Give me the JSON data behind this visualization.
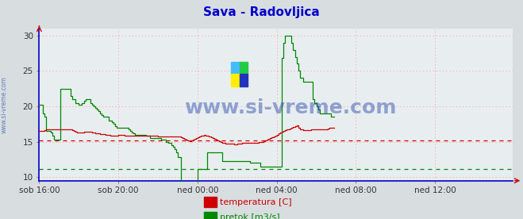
{
  "title": "Sava - Radovljica",
  "title_color": "#0000cc",
  "title_fontsize": 11,
  "bg_color": "#d8dde0",
  "plot_bg_color": "#e8eef0",
  "xlim": [
    0,
    287
  ],
  "ylim": [
    9.5,
    31
  ],
  "yticks": [
    10,
    15,
    20,
    25,
    30
  ],
  "xlabel_ticks": [
    0,
    48,
    96,
    144,
    192,
    240
  ],
  "xlabel_labels": [
    "sob 16:00",
    "sob 20:00",
    "ned 00:00",
    "ned 04:00",
    "ned 08:00",
    "ned 12:00"
  ],
  "watermark": "www.si-vreme.com",
  "watermark_color": "#2244aa",
  "watermark_fontsize": 18,
  "temp_color": "#cc0000",
  "flow_color": "#008800",
  "avg_temp_color": "#cc0000",
  "avg_flow_color": "#008800",
  "avg_temp_value": 15.2,
  "avg_flow_value": 11.2,
  "legend_labels": [
    "temperatura [C]",
    "pretok [m3/s]"
  ],
  "legend_colors": [
    "#cc0000",
    "#008800"
  ],
  "temp_data": [
    16.5,
    16.5,
    16.5,
    16.6,
    16.7,
    16.7,
    16.8,
    16.8,
    16.8,
    16.8,
    16.8,
    16.8,
    16.8,
    16.8,
    16.7,
    16.7,
    16.8,
    16.8,
    16.7,
    16.7,
    16.6,
    16.5,
    16.4,
    16.3,
    16.3,
    16.3,
    16.3,
    16.4,
    16.4,
    16.4,
    16.4,
    16.4,
    16.3,
    16.3,
    16.2,
    16.2,
    16.2,
    16.1,
    16.1,
    16.1,
    16.0,
    16.0,
    16.0,
    15.9,
    15.9,
    15.9,
    15.9,
    15.9,
    16.0,
    16.0,
    16.0,
    16.0,
    15.9,
    15.9,
    15.9,
    15.8,
    15.8,
    15.8,
    15.8,
    15.8,
    15.8,
    15.8,
    15.8,
    15.8,
    15.8,
    15.8,
    15.8,
    15.8,
    15.8,
    15.8,
    15.8,
    15.8,
    15.7,
    15.7,
    15.7,
    15.7,
    15.7,
    15.7,
    15.7,
    15.7,
    15.7,
    15.7,
    15.7,
    15.7,
    15.7,
    15.7,
    15.6,
    15.5,
    15.4,
    15.3,
    15.2,
    15.1,
    15.2,
    15.3,
    15.4,
    15.5,
    15.6,
    15.7,
    15.8,
    15.9,
    16.0,
    15.9,
    15.8,
    15.7,
    15.6,
    15.5,
    15.4,
    15.3,
    15.2,
    15.1,
    15.0,
    14.9,
    14.8,
    14.7,
    14.7,
    14.7,
    14.7,
    14.7,
    14.6,
    14.6,
    14.7,
    14.7,
    14.7,
    14.8,
    14.8,
    14.8,
    14.8,
    14.8,
    14.9,
    14.9,
    14.9,
    14.9,
    14.9,
    15.0,
    15.0,
    15.0,
    15.1,
    15.2,
    15.3,
    15.4,
    15.5,
    15.6,
    15.7,
    15.8,
    16.0,
    16.2,
    16.3,
    16.4,
    16.5,
    16.6,
    16.7,
    16.8,
    16.9,
    17.0,
    17.1,
    17.2,
    17.3,
    17.0,
    16.8,
    16.7,
    16.6,
    16.6,
    16.6,
    16.6,
    16.6,
    16.7,
    16.7,
    16.7,
    16.7,
    16.7,
    16.8,
    16.8,
    16.8,
    16.8,
    16.8,
    16.9,
    17.0,
    17.0,
    17.0,
    17.0
  ],
  "flow_data": [
    20.2,
    20.2,
    19.0,
    18.5,
    16.5,
    16.5,
    16.5,
    16.3,
    15.8,
    15.3,
    15.3,
    15.3,
    15.3,
    22.5,
    22.5,
    22.5,
    22.5,
    22.5,
    22.5,
    21.5,
    21.0,
    21.0,
    20.5,
    20.5,
    20.2,
    20.2,
    20.5,
    20.8,
    21.0,
    21.0,
    21.0,
    20.5,
    20.2,
    20.0,
    19.8,
    19.5,
    19.3,
    19.0,
    18.8,
    18.5,
    18.5,
    18.5,
    18.0,
    18.0,
    17.8,
    17.5,
    17.2,
    17.0,
    17.0,
    17.0,
    17.0,
    17.0,
    17.0,
    17.0,
    16.8,
    16.5,
    16.3,
    16.2,
    16.0,
    16.0,
    16.0,
    16.0,
    16.0,
    16.0,
    16.0,
    15.8,
    15.8,
    15.5,
    15.5,
    15.5,
    15.5,
    15.5,
    15.5,
    15.5,
    15.3,
    15.3,
    15.3,
    15.0,
    14.8,
    14.8,
    14.5,
    14.3,
    14.0,
    13.5,
    12.8,
    12.8,
    9.5,
    9.5,
    9.0,
    9.0,
    9.0,
    9.0,
    9.0,
    9.0,
    9.0,
    9.0,
    11.2,
    11.2,
    11.2,
    11.2,
    11.2,
    11.2,
    13.5,
    13.5,
    13.5,
    13.5,
    13.5,
    13.5,
    13.5,
    13.5,
    13.5,
    12.3,
    12.3,
    12.3,
    12.3,
    12.3,
    12.3,
    12.3,
    12.3,
    12.3,
    12.3,
    12.3,
    12.3,
    12.3,
    12.3,
    12.3,
    12.3,
    12.3,
    12.0,
    12.0,
    12.0,
    12.0,
    12.0,
    12.0,
    11.5,
    11.5,
    11.5,
    11.5,
    11.5,
    11.5,
    11.5,
    11.5,
    11.5,
    11.5,
    11.5,
    11.5,
    11.5,
    26.8,
    29.0,
    30.0,
    30.0,
    30.0,
    30.0,
    29.0,
    28.0,
    27.0,
    26.0,
    25.0,
    24.0,
    24.0,
    23.5,
    23.5,
    23.5,
    23.5,
    23.5,
    23.5,
    21.0,
    20.5,
    20.0,
    19.5,
    19.0,
    19.0,
    19.0,
    19.0,
    19.0,
    19.0,
    19.0,
    18.5,
    18.5,
    18.5
  ]
}
